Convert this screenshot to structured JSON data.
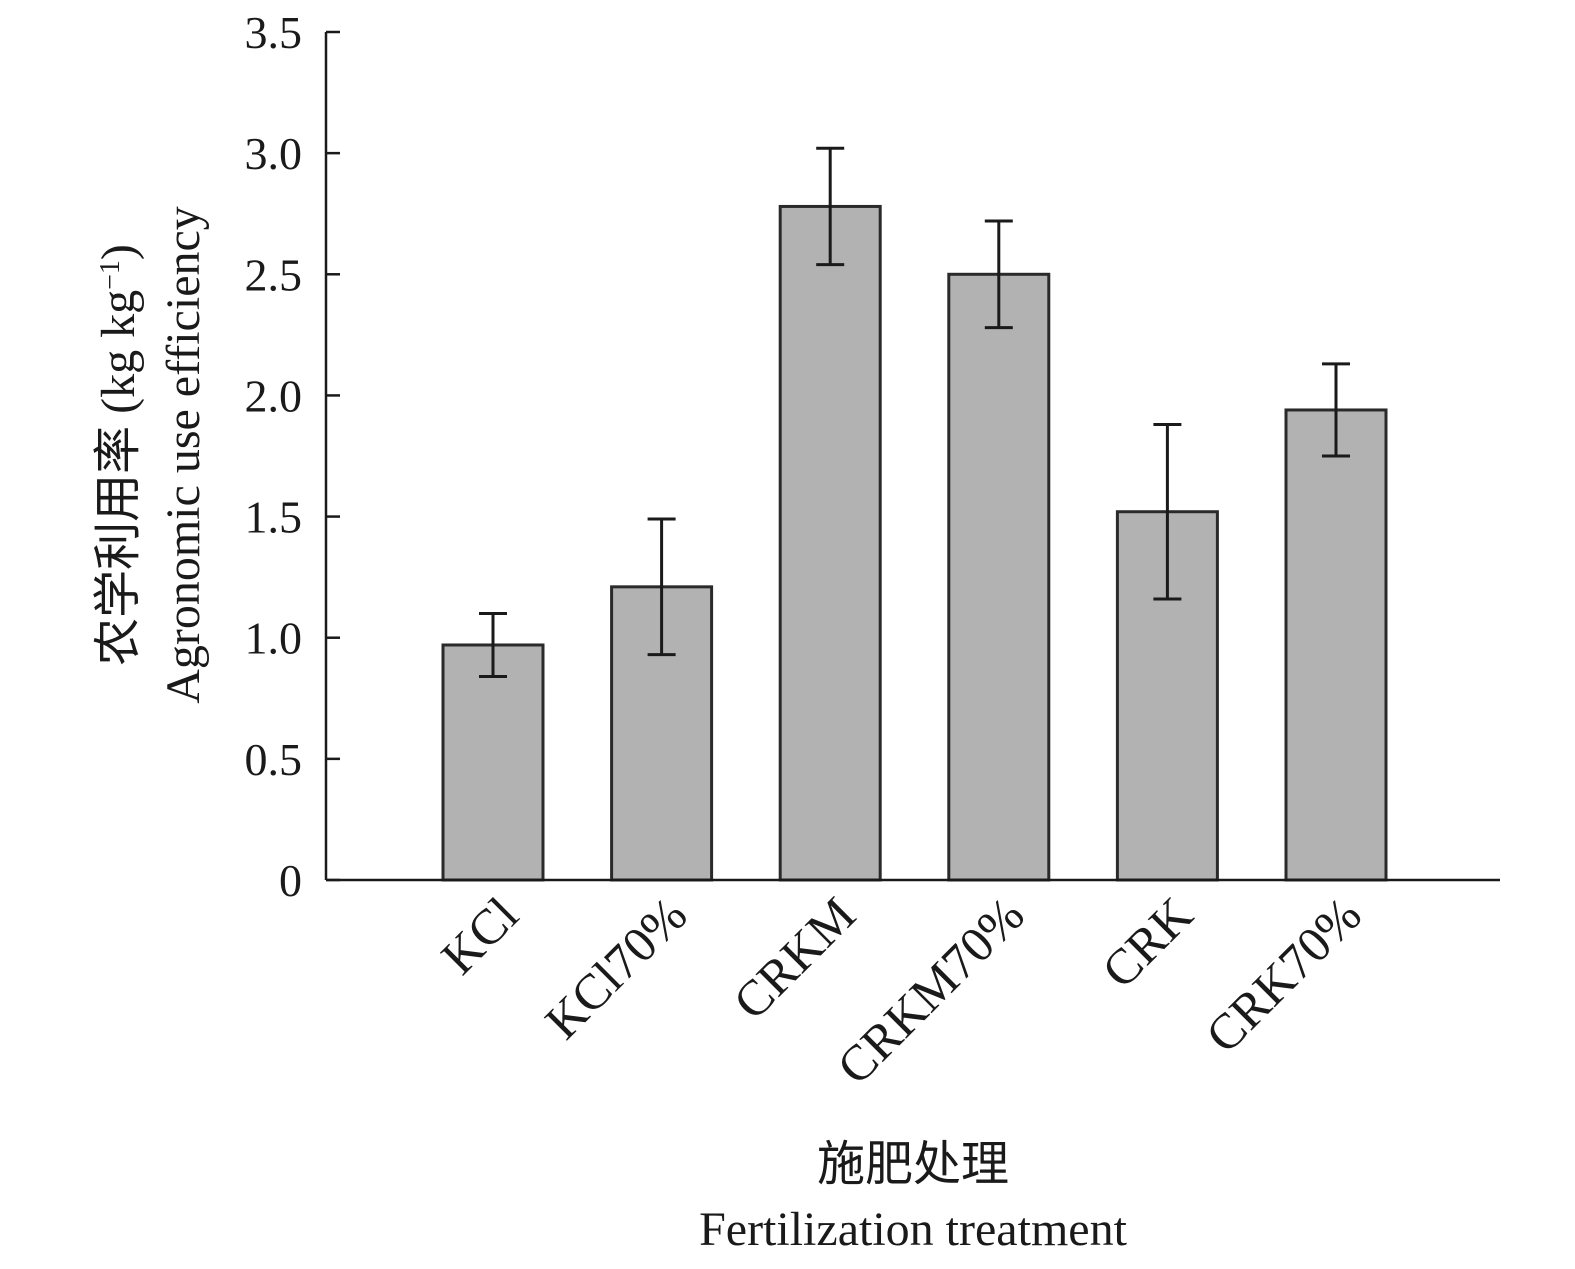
{
  "chart_data": {
    "type": "bar",
    "categories": [
      "KCl",
      "KCl70%",
      "CRKM",
      "CRKM70%",
      "CRK",
      "CRK70%"
    ],
    "values": [
      0.97,
      1.21,
      2.78,
      2.5,
      1.52,
      1.94
    ],
    "errors": [
      0.13,
      0.28,
      0.24,
      0.22,
      0.36,
      0.19
    ],
    "ylim": [
      0,
      3.5
    ],
    "yticks": [
      "0",
      "0.5",
      "1.0",
      "1.5",
      "2.0",
      "2.5",
      "3.0",
      "3.5"
    ],
    "ylabel_cn": "农学利用率 (kg kg",
    "ylabel_sup": "−1",
    "ylabel_close": ")",
    "ylabel_en": "Agronomic use efficiency",
    "xlabel_cn": "施肥处理",
    "xlabel_en": "Fertilization treatment",
    "grid": false,
    "colors": {
      "bar_fill": "#b2b2b2",
      "bar_stroke": "#2a2a2a",
      "axis": "#1a1a1a"
    }
  }
}
